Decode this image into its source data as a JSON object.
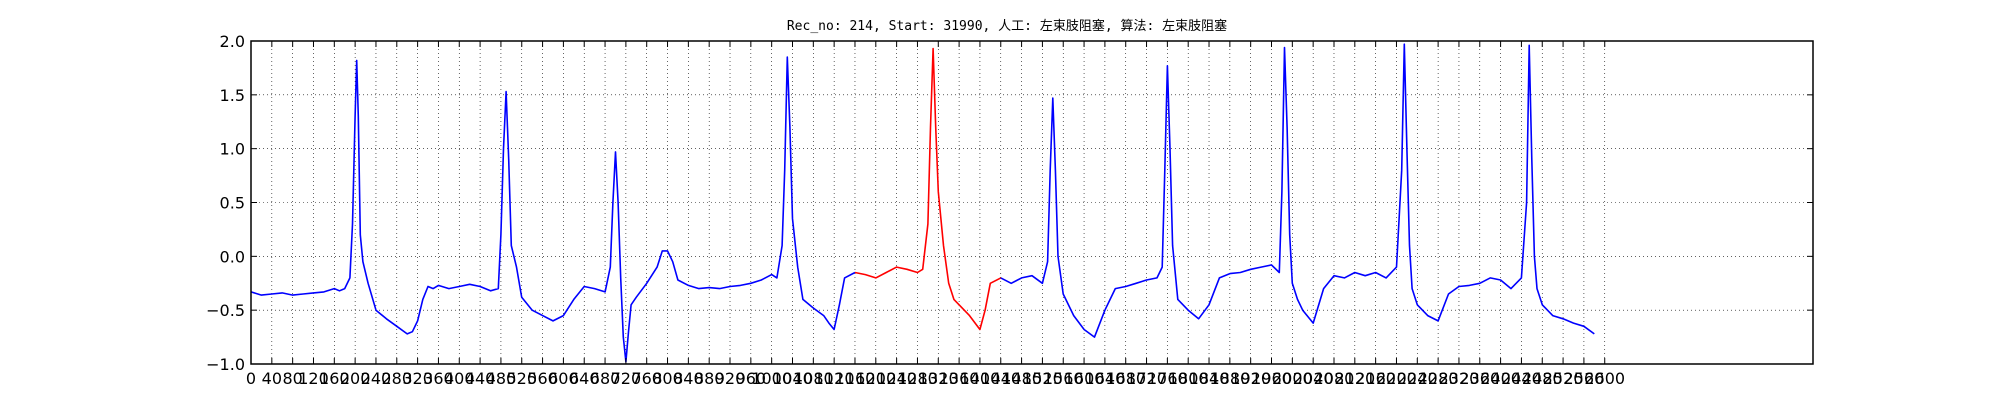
{
  "chart_data": {
    "type": "line",
    "title": "Rec_no: 214, Start: 31990, 人工: 左束肢阻塞, 算法: 左束肢阻塞",
    "xlabel": "",
    "ylabel": "",
    "xlim": [
      0,
      3000
    ],
    "ylim": [
      -1.0,
      2.0
    ],
    "grid": true,
    "x_ticks": [
      0,
      40,
      80,
      120,
      160,
      200,
      240,
      280,
      320,
      360,
      400,
      440,
      480,
      520,
      560,
      600,
      640,
      680,
      720,
      760,
      800,
      840,
      880,
      920,
      960,
      1000,
      1040,
      1080,
      1120,
      1160,
      1200,
      1240,
      1280,
      1320,
      1360,
      1400,
      1440,
      1480,
      1520,
      1560,
      1600,
      1640,
      1680,
      1720,
      1760,
      1800,
      1840,
      1880,
      1920,
      1960,
      2000,
      2040,
      2080,
      2120,
      2160,
      2200,
      2240,
      2280,
      2320,
      2360,
      2400,
      2440,
      2480,
      2520,
      2560,
      2600
    ],
    "y_ticks": [
      -1.0,
      -0.5,
      0.0,
      0.5,
      1.0,
      1.5,
      2.0
    ],
    "y_tick_labels": [
      "−1.0",
      "−0.5",
      "0.0",
      "0.5",
      "1.0",
      "1.5",
      "2.0"
    ],
    "series": [
      {
        "color": "#0000ff",
        "segment": "before",
        "x": [
          0,
          20,
          40,
          60,
          80,
          100,
          120,
          140,
          160,
          170,
          180,
          190,
          195,
          200,
          203,
          206,
          210,
          215,
          225,
          240,
          260,
          280,
          300,
          310,
          320,
          330,
          340,
          350,
          360,
          380,
          400,
          420,
          440,
          460,
          475,
          480,
          485,
          490,
          495,
          500,
          510,
          520,
          540,
          560,
          580,
          600,
          620,
          640,
          660,
          680,
          690,
          695,
          700,
          705,
          710,
          715,
          720,
          725,
          730,
          740,
          760,
          780,
          790,
          800,
          810,
          820,
          840,
          860,
          880,
          900,
          920,
          940,
          960,
          980,
          1000,
          1010,
          1020,
          1025,
          1030,
          1035,
          1040,
          1050,
          1060,
          1080,
          1100,
          1110,
          1120,
          1130,
          1140,
          1160
        ],
        "y": [
          -0.33,
          -0.36,
          -0.35,
          -0.34,
          -0.36,
          -0.35,
          -0.34,
          -0.33,
          -0.3,
          -0.32,
          -0.3,
          -0.2,
          0.3,
          1.3,
          1.82,
          1.3,
          0.2,
          -0.05,
          -0.25,
          -0.5,
          -0.58,
          -0.65,
          -0.72,
          -0.7,
          -0.6,
          -0.4,
          -0.28,
          -0.3,
          -0.27,
          -0.3,
          -0.28,
          -0.26,
          -0.28,
          -0.32,
          -0.3,
          0.2,
          1.0,
          1.53,
          0.9,
          0.1,
          -0.1,
          -0.38,
          -0.5,
          -0.55,
          -0.6,
          -0.55,
          -0.4,
          -0.28,
          -0.3,
          -0.33,
          -0.1,
          0.5,
          0.97,
          0.5,
          -0.2,
          -0.75,
          -0.98,
          -0.7,
          -0.45,
          -0.38,
          -0.25,
          -0.1,
          0.05,
          0.05,
          -0.05,
          -0.22,
          -0.27,
          -0.3,
          -0.29,
          -0.3,
          -0.28,
          -0.27,
          -0.25,
          -0.22,
          -0.17,
          -0.2,
          0.1,
          0.8,
          1.85,
          1.2,
          0.35,
          -0.1,
          -0.4,
          -0.48,
          -0.55,
          -0.62,
          -0.68,
          -0.45,
          -0.2,
          -0.15
        ]
      },
      {
        "color": "#ff0000",
        "segment": "highlighted",
        "x": [
          1160,
          1180,
          1200,
          1220,
          1240,
          1260,
          1280,
          1290,
          1300,
          1305,
          1310,
          1315,
          1320,
          1330,
          1340,
          1350,
          1360,
          1380,
          1400,
          1410,
          1420,
          1440
        ],
        "y": [
          -0.15,
          -0.17,
          -0.2,
          -0.15,
          -0.1,
          -0.12,
          -0.15,
          -0.12,
          0.3,
          1.2,
          1.93,
          1.2,
          0.6,
          0.1,
          -0.25,
          -0.4,
          -0.45,
          -0.55,
          -0.68,
          -0.5,
          -0.25,
          -0.2
        ]
      },
      {
        "color": "#0000ff",
        "segment": "after",
        "x": [
          1440,
          1460,
          1480,
          1500,
          1520,
          1530,
          1535,
          1540,
          1545,
          1550,
          1560,
          1580,
          1600,
          1620,
          1640,
          1660,
          1680,
          1700,
          1720,
          1740,
          1750,
          1755,
          1760,
          1765,
          1770,
          1780,
          1800,
          1820,
          1840,
          1860,
          1880,
          1900,
          1920,
          1940,
          1960,
          1975,
          1980,
          1985,
          1990,
          1995,
          2000,
          2010,
          2020,
          2040,
          2060,
          2080,
          2100,
          2120,
          2140,
          2160,
          2180,
          2200,
          2210,
          2215,
          2220,
          2225,
          2230,
          2240,
          2260,
          2280,
          2300,
          2320,
          2340,
          2360,
          2380,
          2400,
          2420,
          2440,
          2450,
          2455,
          2460,
          2465,
          2470,
          2480,
          2500,
          2520,
          2540,
          2560,
          2580
        ],
        "y": [
          -0.2,
          -0.25,
          -0.2,
          -0.18,
          -0.25,
          -0.05,
          0.8,
          1.47,
          0.8,
          0.0,
          -0.35,
          -0.55,
          -0.68,
          -0.75,
          -0.5,
          -0.3,
          -0.28,
          -0.25,
          -0.22,
          -0.2,
          -0.1,
          0.8,
          1.77,
          1.0,
          0.1,
          -0.4,
          -0.5,
          -0.58,
          -0.45,
          -0.2,
          -0.16,
          -0.15,
          -0.12,
          -0.1,
          -0.08,
          -0.15,
          0.6,
          1.94,
          1.2,
          0.2,
          -0.25,
          -0.4,
          -0.5,
          -0.62,
          -0.3,
          -0.18,
          -0.2,
          -0.15,
          -0.18,
          -0.15,
          -0.2,
          -0.1,
          0.8,
          1.97,
          1.0,
          0.1,
          -0.3,
          -0.45,
          -0.55,
          -0.6,
          -0.35,
          -0.28,
          -0.27,
          -0.25,
          -0.2,
          -0.22,
          -0.3,
          -0.2,
          0.5,
          1.96,
          0.9,
          0.0,
          -0.3,
          -0.45,
          -0.55,
          -0.58,
          -0.62,
          -0.65,
          -0.72
        ]
      }
    ]
  }
}
